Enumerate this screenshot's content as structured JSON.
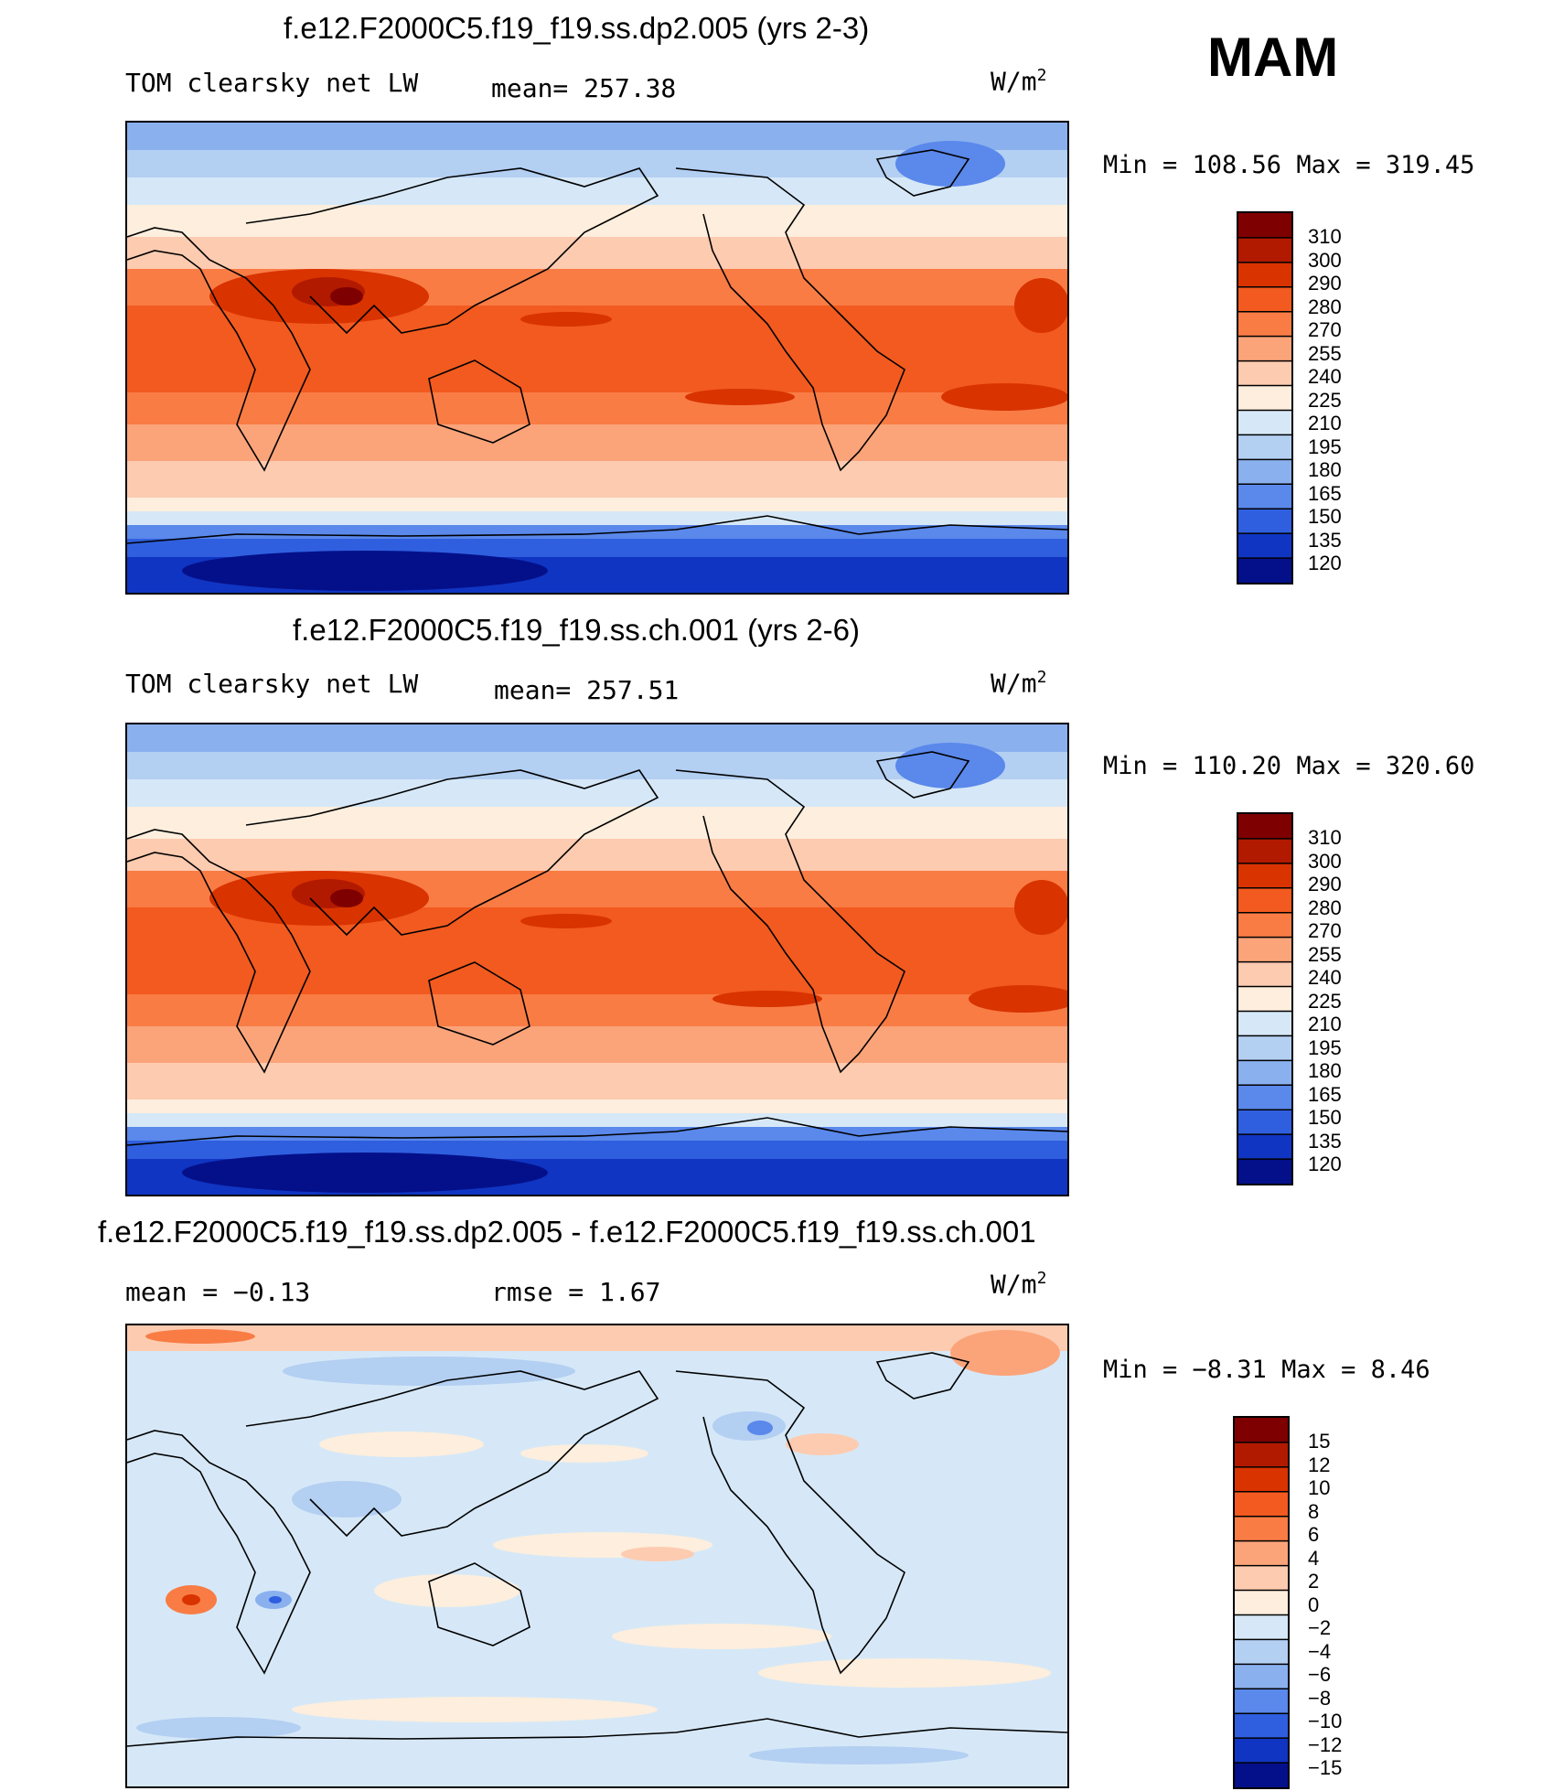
{
  "season": "MAM",
  "panels": [
    {
      "title": "f.e12.F2000C5.f19_f19.ss.dp2.005 (yrs 2-3)",
      "variable": "TOM clearsky net LW",
      "stat1": "mean= 257.38",
      "stat2": "",
      "units": "W/m",
      "units_sup": "2",
      "minmax": "Min  =  108.56 Max  =  319.45",
      "colorbar": {
        "labels": [
          "310",
          "300",
          "290",
          "280",
          "270",
          "255",
          "240",
          "225",
          "210",
          "195",
          "180",
          "165",
          "150",
          "135",
          "120"
        ],
        "colors": [
          "#7f0000",
          "#b21a00",
          "#d93300",
          "#f25a1f",
          "#f97c45",
          "#fba47a",
          "#fdcbb0",
          "#fdeedd",
          "#d6e8f7",
          "#b3cff2",
          "#8ab0ee",
          "#5a88eb",
          "#2f5fdf",
          "#1035c2",
          "#04108a"
        ]
      }
    },
    {
      "title": "f.e12.F2000C5.f19_f19.ss.ch.001 (yrs 2-6)",
      "variable": "TOM clearsky net LW",
      "stat1": "mean= 257.51",
      "stat2": "",
      "units": "W/m",
      "units_sup": "2",
      "minmax": "Min  =  110.20 Max  =  320.60",
      "colorbar": {
        "labels": [
          "310",
          "300",
          "290",
          "280",
          "270",
          "255",
          "240",
          "225",
          "210",
          "195",
          "180",
          "165",
          "150",
          "135",
          "120"
        ],
        "colors": [
          "#7f0000",
          "#b21a00",
          "#d93300",
          "#f25a1f",
          "#f97c45",
          "#fba47a",
          "#fdcbb0",
          "#fdeedd",
          "#d6e8f7",
          "#b3cff2",
          "#8ab0ee",
          "#5a88eb",
          "#2f5fdf",
          "#1035c2",
          "#04108a"
        ]
      }
    },
    {
      "title": "f.e12.F2000C5.f19_f19.ss.dp2.005 - f.e12.F2000C5.f19_f19.ss.ch.001",
      "variable": "",
      "stat1": "mean =   −0.13",
      "stat2": "rmse =    1.67",
      "units": "W/m",
      "units_sup": "2",
      "minmax": "Min  =  −8.31 Max  =    8.46",
      "colorbar": {
        "labels": [
          "15",
          "12",
          "10",
          "8",
          "6",
          "4",
          "2",
          "0",
          "−2",
          "−4",
          "−6",
          "−8",
          "−10",
          "−12",
          "−15"
        ],
        "colors": [
          "#7f0000",
          "#b21a00",
          "#d93300",
          "#f25a1f",
          "#f97c45",
          "#fba47a",
          "#fdcbb0",
          "#fdeedd",
          "#d6e8f7",
          "#b3cff2",
          "#8ab0ee",
          "#5a88eb",
          "#2f5fdf",
          "#1035c2",
          "#04108a"
        ]
      }
    }
  ]
}
